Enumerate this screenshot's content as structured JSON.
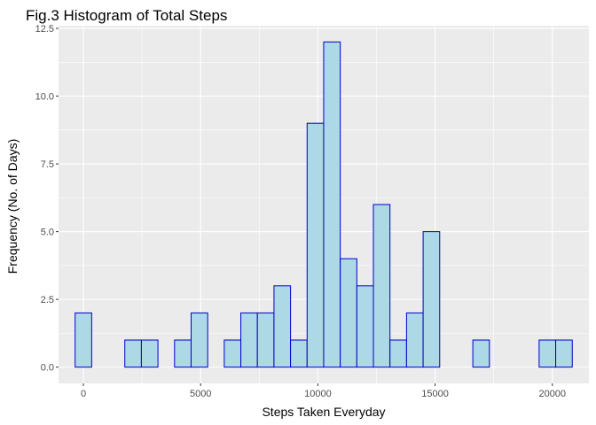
{
  "chart_data": {
    "type": "histogram",
    "title": "Fig.3 Histogram of Total Steps",
    "xlabel": "Steps Taken Everyday",
    "ylabel": "Frequency (No. of Days)",
    "binwidth": 706.8,
    "bins": [
      {
        "center": 0,
        "count": 2
      },
      {
        "center": 707,
        "count": 0
      },
      {
        "center": 1414,
        "count": 0
      },
      {
        "center": 2120,
        "count": 1
      },
      {
        "center": 2827,
        "count": 1
      },
      {
        "center": 3534,
        "count": 0
      },
      {
        "center": 4241,
        "count": 1
      },
      {
        "center": 4948,
        "count": 2
      },
      {
        "center": 5654,
        "count": 0
      },
      {
        "center": 6361,
        "count": 1
      },
      {
        "center": 7068,
        "count": 2
      },
      {
        "center": 7775,
        "count": 2
      },
      {
        "center": 8482,
        "count": 3
      },
      {
        "center": 9188,
        "count": 1
      },
      {
        "center": 9895,
        "count": 9
      },
      {
        "center": 10602,
        "count": 12
      },
      {
        "center": 11309,
        "count": 4
      },
      {
        "center": 12016,
        "count": 3
      },
      {
        "center": 12722,
        "count": 6
      },
      {
        "center": 13429,
        "count": 1
      },
      {
        "center": 14136,
        "count": 2
      },
      {
        "center": 14843,
        "count": 5
      },
      {
        "center": 15550,
        "count": 0
      },
      {
        "center": 16256,
        "count": 0
      },
      {
        "center": 16963,
        "count": 1
      },
      {
        "center": 17670,
        "count": 0
      },
      {
        "center": 18377,
        "count": 0
      },
      {
        "center": 19084,
        "count": 0
      },
      {
        "center": 19790,
        "count": 1
      },
      {
        "center": 20497,
        "count": 1
      }
    ],
    "xlim": [
      -1060,
      21560
    ],
    "ylim": [
      -0.6,
      12.6
    ],
    "xticks": [
      0,
      5000,
      10000,
      15000,
      20000
    ],
    "xtick_labels": [
      "0",
      "5000",
      "10000",
      "15000",
      "20000"
    ],
    "yticks": [
      0,
      2.5,
      5,
      7.5,
      10,
      12.5
    ],
    "ytick_labels": [
      "0.0",
      "2.5",
      "5.0",
      "7.5",
      "10.0",
      "12.5"
    ],
    "grid": true,
    "legend": "none",
    "colors": {
      "panel_background": "#EBEBEB",
      "grid_major": "#FFFFFF",
      "bar_fill": "#ADD8E6",
      "bar_outline": "#0000CD",
      "tick_label": "#4D4D4D"
    }
  }
}
